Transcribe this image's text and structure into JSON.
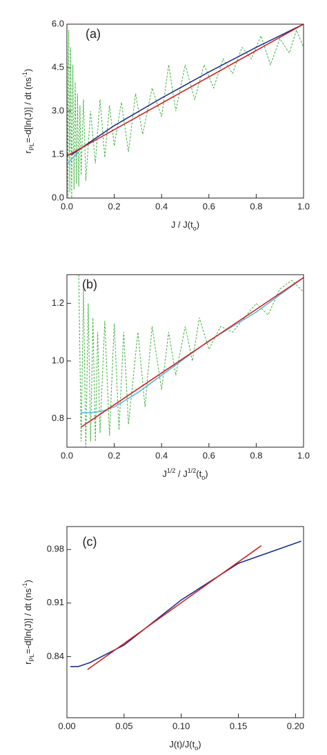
{
  "chart_data": [
    {
      "type": "line",
      "panel_label": "(a)",
      "ylabel": [
        "r",
        "PL",
        "=-d[ln(J)] / dt (ns",
        "-1",
        ")"
      ],
      "xlabel": [
        "J / J(t",
        "o",
        ")"
      ],
      "xlim": [
        0,
        1
      ],
      "ylim": [
        0,
        6
      ],
      "xticks": [
        {
          "value": 0,
          "label": "0.0"
        },
        0.2,
        0.4,
        0.6,
        0.8,
        {
          "value": 1,
          "label": "1.0"
        }
      ],
      "yticks": [
        {
          "value": 0,
          "label": "0.0"
        },
        1.5,
        {
          "value": 3,
          "label": "3.0"
        },
        4.5,
        {
          "value": 6,
          "label": "6.0"
        }
      ],
      "series": [
        {
          "color": "#3cb03c",
          "linestyle": "dashed",
          "x": [
            0,
            0.004,
            0.008,
            0.012,
            0.016,
            0.02,
            0.025,
            0.03,
            0.035,
            0.04,
            0.045,
            0.05,
            0.055,
            0.06,
            0.07,
            0.08,
            0.1,
            0.12,
            0.14,
            0.16,
            0.18,
            0.2,
            0.23,
            0.26,
            0.29,
            0.32,
            0.36,
            0.4,
            0.43,
            0.46,
            0.5,
            0.54,
            0.58,
            0.62,
            0.66,
            0.7,
            0.74,
            0.78,
            0.82,
            0.86,
            0.9,
            0.94,
            0.97,
            1.0
          ],
          "values": [
            6.0,
            0.0,
            5.8,
            0.2,
            5.2,
            0.0,
            4.6,
            0.3,
            4.0,
            0.5,
            3.6,
            0.4,
            3.2,
            0.8,
            3.4,
            0.6,
            3.0,
            1.2,
            3.4,
            1.4,
            3.2,
            1.8,
            3.3,
            1.6,
            3.6,
            2.2,
            3.8,
            2.8,
            4.6,
            3.0,
            4.6,
            3.4,
            4.6,
            3.8,
            4.8,
            4.3,
            5.2,
            4.8,
            5.6,
            4.6,
            5.5,
            5.0,
            5.8,
            5.2
          ]
        },
        {
          "color": "#5bb8d6",
          "linestyle": "solid",
          "x": [
            0,
            0.02,
            0.05
          ],
          "values": [
            1.15,
            1.35,
            1.6
          ]
        },
        {
          "color": "#1f2f8a",
          "linestyle": "solid",
          "x": [
            0.02,
            0.2,
            0.4,
            0.6,
            0.8,
            1.0
          ],
          "values": [
            1.5,
            2.5,
            3.45,
            4.35,
            5.2,
            6.0
          ]
        },
        {
          "color": "#cc2222",
          "linestyle": "solid",
          "x": [
            0,
            1
          ],
          "values": [
            1.45,
            6.0
          ]
        }
      ]
    },
    {
      "type": "line",
      "panel_label": "(b)",
      "xlabel": [
        "J",
        "1/2",
        " / J",
        "1/2",
        "(t",
        "o",
        ")"
      ],
      "xlim": [
        0,
        1
      ],
      "ylim": [
        0.7,
        1.3
      ],
      "xticks": [
        {
          "value": 0,
          "label": "0.0"
        },
        0.2,
        0.4,
        0.6,
        0.8,
        {
          "value": 1,
          "label": "1.0"
        }
      ],
      "yticks": [
        0.8,
        {
          "value": 1,
          "label": "1.0"
        },
        1.2
      ],
      "series": [
        {
          "color": "#3cb03c",
          "linestyle": "dashed",
          "x": [
            0.05,
            0.06,
            0.07,
            0.08,
            0.09,
            0.1,
            0.11,
            0.12,
            0.13,
            0.14,
            0.16,
            0.18,
            0.2,
            0.22,
            0.24,
            0.26,
            0.3,
            0.33,
            0.36,
            0.4,
            0.43,
            0.46,
            0.5,
            0.53,
            0.56,
            0.6,
            0.65,
            0.7,
            0.75,
            0.8,
            0.85,
            0.9,
            0.95,
            1.0
          ],
          "values": [
            1.3,
            0.72,
            1.25,
            0.7,
            1.2,
            0.72,
            1.15,
            0.72,
            1.1,
            0.75,
            1.14,
            0.74,
            1.13,
            0.76,
            1.1,
            0.78,
            1.1,
            0.84,
            1.12,
            0.9,
            1.1,
            0.95,
            1.12,
            1.0,
            1.15,
            1.04,
            1.12,
            1.1,
            1.15,
            1.2,
            1.16,
            1.25,
            1.28,
            1.24
          ]
        },
        {
          "color": "#5bb8d6",
          "linestyle": "solid",
          "x": [
            0.06,
            0.1,
            0.15,
            0.2,
            0.3,
            0.4,
            0.5,
            0.6,
            0.7,
            0.8,
            0.9,
            1.0
          ],
          "values": [
            0.82,
            0.82,
            0.825,
            0.84,
            0.89,
            0.95,
            1.01,
            1.07,
            1.12,
            1.17,
            1.23,
            1.29
          ]
        },
        {
          "color": "#cc2222",
          "linestyle": "solid",
          "x": [
            0.06,
            1.0
          ],
          "values": [
            0.77,
            1.29
          ]
        }
      ]
    },
    {
      "type": "line",
      "panel_label": "(c)",
      "ylabel": [
        "r",
        "PL",
        "=-d[ln(J)] / dt (ns",
        "-1",
        ")"
      ],
      "xlabel": [
        "J(t)/J(t",
        "o",
        ")"
      ],
      "xlim": [
        0,
        0.207
      ],
      "ylim": [
        0.76,
        1.01
      ],
      "xticks": [
        {
          "value": 0,
          "label": "0.00"
        },
        0.05,
        {
          "value": 0.1,
          "label": "0.10"
        },
        0.15,
        {
          "value": 0.2,
          "label": "0.20"
        }
      ],
      "yticks": [
        0.84,
        0.91,
        0.98
      ],
      "series": [
        {
          "color": "#1f2f8a",
          "linestyle": "solid",
          "x": [
            0.003,
            0.01,
            0.02,
            0.05,
            0.1,
            0.15,
            0.205
          ],
          "values": [
            0.827,
            0.827,
            0.832,
            0.855,
            0.914,
            0.962,
            0.991
          ]
        },
        {
          "color": "#cc2222",
          "linestyle": "solid",
          "x": [
            0.018,
            0.17
          ],
          "values": [
            0.823,
            0.985
          ]
        }
      ]
    }
  ]
}
